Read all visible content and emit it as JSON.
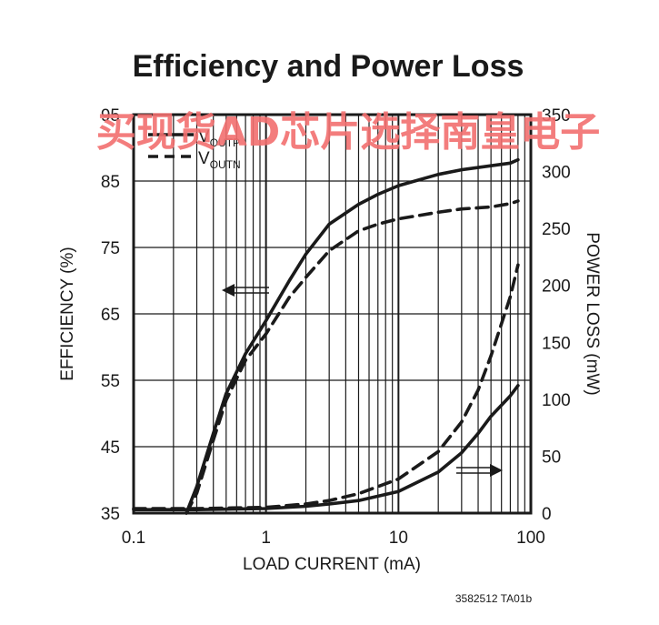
{
  "chart_data": {
    "type": "line",
    "title": "Efficiency and Power Loss",
    "xlabel": "LOAD CURRENT (mA)",
    "ylabel_left": "EFFICIENCY (%)",
    "ylabel_right": "POWER LOSS (mW)",
    "x_scale": "log",
    "xlim": [
      0.1,
      100
    ],
    "ylim_left": [
      35,
      95
    ],
    "ylim_right": [
      0,
      350
    ],
    "grid": true,
    "legend_position": "top-left",
    "x_ticks": [
      "0.1",
      "1",
      "10",
      "100"
    ],
    "y_left_ticks": [
      "35",
      "45",
      "55",
      "65",
      "75",
      "85",
      "95"
    ],
    "y_right_ticks": [
      "0",
      "50",
      "100",
      "150",
      "200",
      "250",
      "300",
      "350"
    ],
    "legend": [
      {
        "main": "V",
        "sub": "OUTP",
        "style": "solid"
      },
      {
        "main": "V",
        "sub": "OUTN",
        "style": "dashed"
      }
    ],
    "series": [
      {
        "legend_index": 0,
        "axis": "left",
        "style": "solid",
        "x": [
          0.25,
          0.3,
          0.4,
          0.5,
          0.7,
          1,
          1.5,
          2,
          3,
          5,
          7,
          10,
          20,
          30,
          50,
          70,
          80
        ],
        "y": [
          35,
          39,
          47,
          53,
          59,
          64,
          70,
          74,
          78.5,
          81.5,
          83,
          84.3,
          86,
          86.7,
          87.3,
          87.7,
          88.2
        ]
      },
      {
        "legend_index": 1,
        "axis": "left",
        "style": "dashed",
        "x": [
          0.25,
          0.3,
          0.4,
          0.5,
          0.7,
          1,
          1.5,
          2,
          3,
          5,
          7,
          10,
          20,
          30,
          50,
          70,
          80
        ],
        "y": [
          35,
          38,
          46,
          52,
          58,
          62,
          67.5,
          70.5,
          74.5,
          77.5,
          78.5,
          79.3,
          80.3,
          80.8,
          81.1,
          81.6,
          82
        ]
      },
      {
        "legend_index": 0,
        "axis": "right",
        "style": "solid",
        "x": [
          0.1,
          0.3,
          1,
          2,
          3,
          5,
          10,
          20,
          30,
          40,
          50,
          70,
          80
        ],
        "y": [
          3,
          3,
          4,
          6,
          8,
          11,
          19,
          36,
          53,
          70,
          85,
          103,
          112
        ]
      },
      {
        "legend_index": 1,
        "axis": "right",
        "style": "dashed",
        "x": [
          0.1,
          0.3,
          1,
          2,
          3,
          5,
          10,
          20,
          30,
          40,
          50,
          70,
          80
        ],
        "y": [
          4,
          4,
          5,
          8,
          11,
          17,
          30,
          54,
          80,
          108,
          138,
          190,
          218
        ]
      }
    ],
    "annotations": [
      {
        "direction": "left",
        "points_to": "EFFICIENCY (%)"
      },
      {
        "direction": "right",
        "points_to": "POWER LOSS (mW)"
      }
    ]
  },
  "footer_code": "3582512 TA01b",
  "watermark": "买现货AD芯片选择南皇电子",
  "colors": {
    "ink": "#1a1a1a",
    "watermark": "#f26f6f",
    "background": "#ffffff"
  }
}
